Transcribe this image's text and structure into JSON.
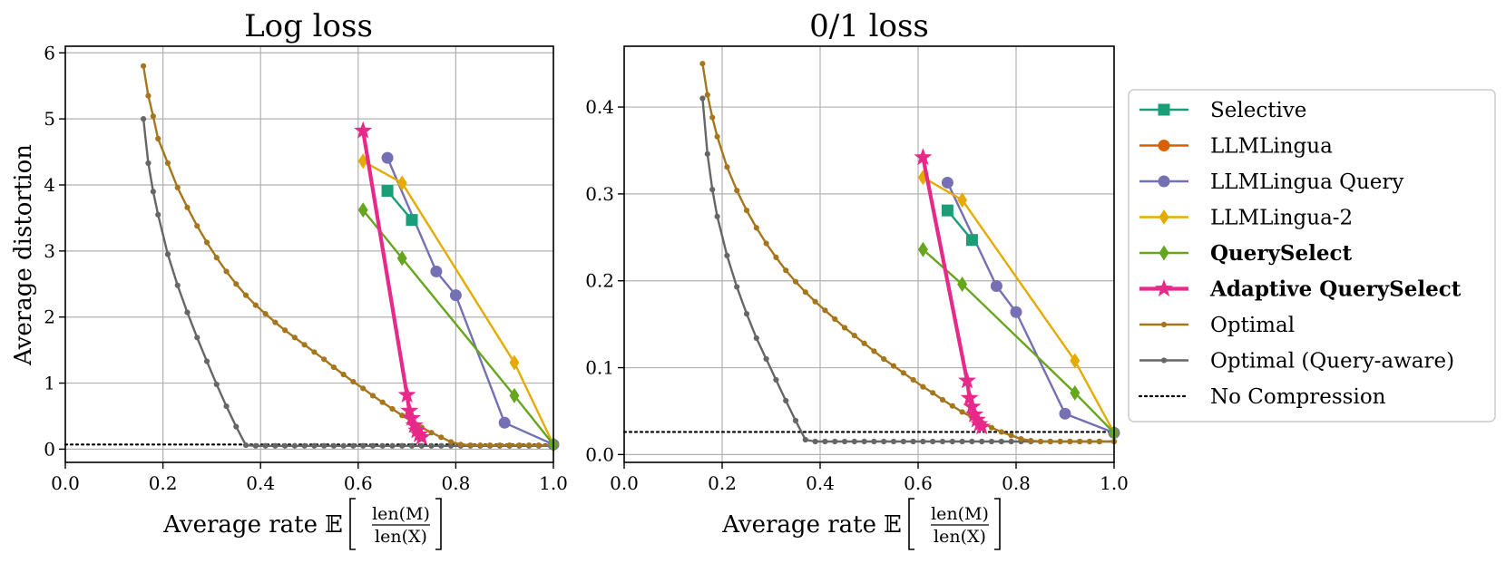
{
  "chart_data": [
    {
      "type": "line",
      "title": "Log loss",
      "xlabel": "Average rate",
      "ylabel": "Average distortion",
      "xlim": [
        0.0,
        1.0
      ],
      "ylim": [
        -0.2,
        6.1
      ],
      "xticks": [
        0.0,
        0.2,
        0.4,
        0.6,
        0.8,
        1.0
      ],
      "xtick_labels": [
        "0.0",
        "0.2",
        "0.4",
        "0.6",
        "0.8",
        "1.0"
      ],
      "yticks": [
        0,
        1,
        2,
        3,
        4,
        5,
        6
      ],
      "ytick_labels": [
        "0",
        "1",
        "2",
        "3",
        "4",
        "5",
        "6"
      ],
      "grid": true,
      "no_compression": 0.07,
      "series": [
        {
          "name": "Selective",
          "x": [
            0.66,
            0.71
          ],
          "y": [
            3.91,
            3.47
          ]
        },
        {
          "name": "LLMLingua",
          "x": [],
          "y": []
        },
        {
          "name": "LLMLingua Query",
          "x": [
            0.66,
            0.76,
            0.8,
            0.9,
            1.0
          ],
          "y": [
            4.41,
            2.69,
            2.33,
            0.4,
            0.07
          ]
        },
        {
          "name": "LLMLingua-2",
          "x": [
            0.61,
            0.69,
            0.92,
            1.0
          ],
          "y": [
            4.36,
            4.03,
            1.31,
            0.07
          ]
        },
        {
          "name": "QuerySelect",
          "x": [
            0.61,
            0.69,
            0.92,
            1.0
          ],
          "y": [
            3.62,
            2.89,
            0.81,
            0.07
          ]
        },
        {
          "name": "Adaptive QuerySelect",
          "x": [
            0.61,
            0.7,
            0.705,
            0.71,
            0.715,
            0.72,
            0.725,
            0.73
          ],
          "y": [
            4.82,
            0.82,
            0.58,
            0.47,
            0.36,
            0.28,
            0.22,
            0.18
          ]
        },
        {
          "name": "Optimal",
          "x": [
            0.16,
            0.17,
            0.18,
            0.19,
            0.21,
            0.23,
            0.25,
            0.27,
            0.29,
            0.31,
            0.33,
            0.35,
            0.37,
            0.39,
            0.41,
            0.43,
            0.45,
            0.47,
            0.49,
            0.51,
            0.53,
            0.55,
            0.57,
            0.59,
            0.61,
            0.63,
            0.65,
            0.67,
            0.69,
            0.71,
            0.73,
            0.75,
            0.77,
            0.79,
            0.81,
            0.83,
            0.85,
            0.87,
            0.89,
            0.91,
            0.93,
            0.95,
            0.97,
            1.0
          ],
          "y": [
            5.8,
            5.35,
            5.04,
            4.7,
            4.33,
            3.96,
            3.66,
            3.38,
            3.13,
            2.9,
            2.69,
            2.5,
            2.33,
            2.18,
            2.05,
            1.92,
            1.8,
            1.69,
            1.58,
            1.47,
            1.36,
            1.24,
            1.13,
            1.02,
            0.92,
            0.81,
            0.71,
            0.61,
            0.51,
            0.42,
            0.33,
            0.25,
            0.18,
            0.11,
            0.07,
            0.06,
            0.06,
            0.06,
            0.06,
            0.06,
            0.06,
            0.06,
            0.06,
            0.06
          ]
        },
        {
          "name": "Optimal (Query-aware)",
          "x": [
            0.16,
            0.17,
            0.18,
            0.19,
            0.21,
            0.23,
            0.25,
            0.27,
            0.29,
            0.31,
            0.33,
            0.35,
            0.37,
            0.39,
            0.41,
            0.43,
            0.45,
            0.47,
            0.49,
            0.51,
            0.53,
            0.55,
            0.57,
            0.59,
            0.61,
            0.63,
            0.65,
            0.67,
            0.69,
            0.71,
            0.73,
            0.75,
            0.77,
            0.79,
            0.81,
            0.83,
            0.85,
            0.87,
            0.89,
            0.91,
            0.93,
            0.95,
            0.97,
            1.0
          ],
          "y": [
            5.0,
            4.33,
            3.9,
            3.55,
            2.95,
            2.48,
            2.07,
            1.69,
            1.33,
            0.98,
            0.65,
            0.34,
            0.06,
            0.05,
            0.05,
            0.05,
            0.05,
            0.05,
            0.05,
            0.05,
            0.05,
            0.05,
            0.05,
            0.05,
            0.05,
            0.05,
            0.05,
            0.05,
            0.05,
            0.05,
            0.05,
            0.05,
            0.05,
            0.05,
            0.05,
            0.05,
            0.05,
            0.05,
            0.05,
            0.05,
            0.05,
            0.05,
            0.05,
            0.05
          ]
        }
      ]
    },
    {
      "type": "line",
      "title": "0/1 loss",
      "xlabel": "Average rate",
      "ylabel": "",
      "xlim": [
        0.0,
        1.0
      ],
      "ylim": [
        -0.009,
        0.47
      ],
      "xticks": [
        0.0,
        0.2,
        0.4,
        0.6,
        0.8,
        1.0
      ],
      "xtick_labels": [
        "0.0",
        "0.2",
        "0.4",
        "0.6",
        "0.8",
        "1.0"
      ],
      "yticks": [
        0.0,
        0.1,
        0.2,
        0.3,
        0.4
      ],
      "ytick_labels": [
        "0.0",
        "0.1",
        "0.2",
        "0.3",
        "0.4"
      ],
      "grid": true,
      "no_compression": 0.026,
      "series": [
        {
          "name": "Selective",
          "x": [
            0.66,
            0.71
          ],
          "y": [
            0.281,
            0.247
          ]
        },
        {
          "name": "LLMLingua",
          "x": [],
          "y": []
        },
        {
          "name": "LLMLingua Query",
          "x": [
            0.66,
            0.76,
            0.8,
            0.9,
            1.0
          ],
          "y": [
            0.313,
            0.194,
            0.164,
            0.047,
            0.025
          ]
        },
        {
          "name": "LLMLingua-2",
          "x": [
            0.61,
            0.69,
            0.92,
            1.0
          ],
          "y": [
            0.319,
            0.293,
            0.108,
            0.025
          ]
        },
        {
          "name": "QuerySelect",
          "x": [
            0.61,
            0.69,
            0.92,
            1.0
          ],
          "y": [
            0.236,
            0.196,
            0.071,
            0.025
          ]
        },
        {
          "name": "Adaptive QuerySelect",
          "x": [
            0.61,
            0.7,
            0.705,
            0.71,
            0.715,
            0.72,
            0.725,
            0.73
          ],
          "y": [
            0.342,
            0.085,
            0.065,
            0.055,
            0.046,
            0.04,
            0.035,
            0.032
          ]
        },
        {
          "name": "Optimal",
          "x": [
            0.16,
            0.17,
            0.18,
            0.19,
            0.21,
            0.23,
            0.25,
            0.27,
            0.29,
            0.31,
            0.33,
            0.35,
            0.37,
            0.39,
            0.41,
            0.43,
            0.45,
            0.47,
            0.49,
            0.51,
            0.53,
            0.55,
            0.57,
            0.59,
            0.61,
            0.63,
            0.65,
            0.67,
            0.69,
            0.71,
            0.73,
            0.75,
            0.77,
            0.79,
            0.81,
            0.83,
            0.85,
            0.87,
            0.89,
            0.91,
            0.93,
            0.95,
            0.97,
            1.0
          ],
          "y": [
            0.45,
            0.414,
            0.388,
            0.366,
            0.331,
            0.304,
            0.281,
            0.261,
            0.243,
            0.227,
            0.212,
            0.199,
            0.187,
            0.176,
            0.166,
            0.156,
            0.146,
            0.137,
            0.128,
            0.119,
            0.11,
            0.102,
            0.094,
            0.086,
            0.078,
            0.071,
            0.063,
            0.056,
            0.049,
            0.043,
            0.037,
            0.031,
            0.026,
            0.022,
            0.018,
            0.016,
            0.015,
            0.015,
            0.015,
            0.015,
            0.015,
            0.015,
            0.015,
            0.015
          ]
        },
        {
          "name": "Optimal (Query-aware)",
          "x": [
            0.16,
            0.17,
            0.18,
            0.19,
            0.21,
            0.23,
            0.25,
            0.27,
            0.29,
            0.31,
            0.33,
            0.35,
            0.37,
            0.39,
            0.41,
            0.43,
            0.45,
            0.47,
            0.49,
            0.51,
            0.53,
            0.55,
            0.57,
            0.59,
            0.61,
            0.63,
            0.65,
            0.67,
            0.69,
            0.71,
            0.73,
            0.75,
            0.77,
            0.79,
            0.81,
            0.83,
            0.85,
            0.87,
            0.89,
            0.91,
            0.93,
            0.95,
            0.97,
            1.0
          ],
          "y": [
            0.41,
            0.346,
            0.305,
            0.274,
            0.229,
            0.193,
            0.162,
            0.134,
            0.11,
            0.086,
            0.062,
            0.039,
            0.017,
            0.015,
            0.015,
            0.015,
            0.015,
            0.015,
            0.015,
            0.015,
            0.015,
            0.015,
            0.015,
            0.015,
            0.015,
            0.015,
            0.015,
            0.015,
            0.015,
            0.015,
            0.015,
            0.015,
            0.015,
            0.015,
            0.015,
            0.015,
            0.015,
            0.015,
            0.015,
            0.015,
            0.015,
            0.015,
            0.015,
            0.015
          ]
        }
      ]
    }
  ],
  "legend": {
    "position": "right",
    "items": [
      {
        "name": "Selective",
        "color": "#1b9e77",
        "marker": "square",
        "bold": false
      },
      {
        "name": "LLMLingua",
        "color": "#d95f02",
        "marker": "circle",
        "bold": false
      },
      {
        "name": "LLMLingua Query",
        "color": "#7570b3",
        "marker": "circle",
        "bold": false
      },
      {
        "name": "LLMLingua-2",
        "color": "#e6ab02",
        "marker": "diamond",
        "bold": false
      },
      {
        "name": "QuerySelect",
        "color": "#66a61e",
        "marker": "diamond",
        "bold": true
      },
      {
        "name": "Adaptive QuerySelect",
        "color": "#e7298a",
        "marker": "star",
        "bold": true
      },
      {
        "name": "Optimal",
        "color": "#a6761d",
        "marker": "dot",
        "bold": false
      },
      {
        "name": "Optimal (Query-aware)",
        "color": "#666666",
        "marker": "dot",
        "bold": false
      },
      {
        "name": "No Compression",
        "color": "#000000",
        "marker": "dotted",
        "bold": false
      }
    ]
  },
  "xlabel_math": {
    "symbol": "𝔼",
    "numerator": "len(M)",
    "denominator": "len(X)"
  }
}
